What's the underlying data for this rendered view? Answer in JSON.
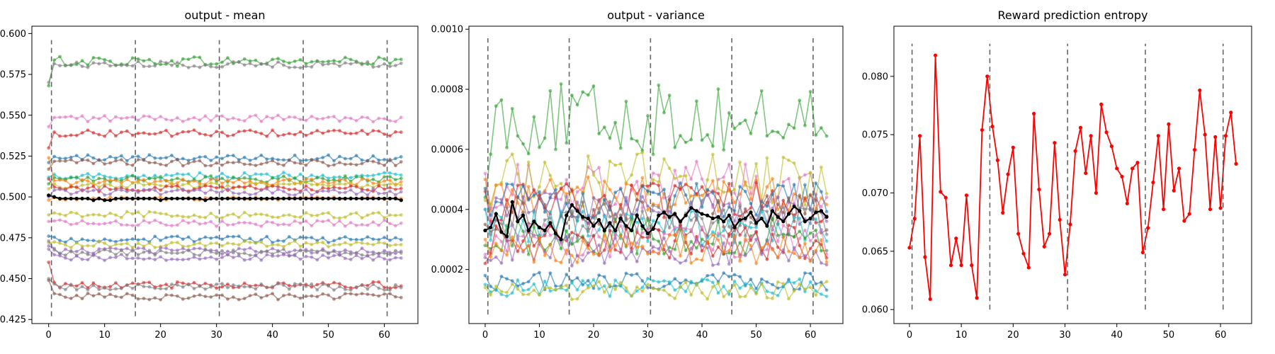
{
  "chart_data": [
    {
      "type": "line",
      "title": "output - mean",
      "xlabel": "",
      "ylabel": "",
      "xlim": [
        -3,
        66
      ],
      "ylim": [
        0.4225,
        0.6045
      ],
      "xticks": [
        "0",
        "10",
        "20",
        "30",
        "40",
        "50",
        "60"
      ],
      "yticks": [
        "0.425",
        "0.450",
        "0.475",
        "0.500",
        "0.525",
        "0.550",
        "0.575",
        "0.600"
      ],
      "vlines": [
        0.5,
        15.5,
        30.5,
        45.5,
        60.5
      ],
      "vline_range": [
        0.427,
        0.596
      ],
      "n_points": 64,
      "series": [
        {
          "color": "#2ca02c",
          "base": 0.583,
          "noise": 0.003,
          "start": 0.568
        },
        {
          "color": "#7f7f7f",
          "base": 0.581,
          "noise": 0.002,
          "start": 0.57
        },
        {
          "color": "#e377c2",
          "base": 0.548,
          "noise": 0.002,
          "start": 0.543
        },
        {
          "color": "#d62728",
          "base": 0.539,
          "noise": 0.002,
          "start": 0.53
        },
        {
          "color": "#1f77b4",
          "base": 0.524,
          "noise": 0.002,
          "start": 0.521
        },
        {
          "color": "#8c564b",
          "base": 0.521,
          "noise": 0.002,
          "start": 0.517
        },
        {
          "color": "#17becf",
          "base": 0.513,
          "noise": 0.002,
          "start": 0.512
        },
        {
          "color": "#2ca02c",
          "base": 0.511,
          "noise": 0.002,
          "start": 0.508
        },
        {
          "color": "#ff7f0e",
          "base": 0.509,
          "noise": 0.002,
          "start": 0.524
        },
        {
          "color": "#bcbd22",
          "base": 0.507,
          "noise": 0.002,
          "start": 0.505
        },
        {
          "color": "#d62728",
          "base": 0.505,
          "noise": 0.002,
          "start": 0.511
        },
        {
          "color": "#9467bd",
          "base": 0.503,
          "noise": 0.002,
          "start": 0.5
        },
        {
          "color": "#ff7f0e",
          "base": 0.499,
          "noise": 0.001,
          "start": 0.498
        },
        {
          "color": "#bcbd22",
          "base": 0.489,
          "noise": 0.002,
          "start": 0.489
        },
        {
          "color": "#e377c2",
          "base": 0.484,
          "noise": 0.002,
          "start": 0.485
        },
        {
          "color": "#1f77b4",
          "base": 0.474,
          "noise": 0.002,
          "start": 0.476
        },
        {
          "color": "#bcbd22",
          "base": 0.471,
          "noise": 0.002,
          "start": 0.472
        },
        {
          "color": "#9467bd",
          "base": 0.467,
          "noise": 0.002,
          "start": 0.47
        },
        {
          "color": "#7f7f7f",
          "base": 0.466,
          "noise": 0.002,
          "start": 0.473
        },
        {
          "color": "#9467bd",
          "base": 0.463,
          "noise": 0.002,
          "start": 0.468
        },
        {
          "color": "#d62728",
          "base": 0.446,
          "noise": 0.002,
          "start": 0.46
        },
        {
          "color": "#7f7f7f",
          "base": 0.445,
          "noise": 0.002,
          "start": 0.45
        },
        {
          "color": "#8c564b",
          "base": 0.439,
          "noise": 0.002,
          "start": 0.449
        }
      ],
      "mean_series": {
        "color": "#000000",
        "values": [
          0.501,
          0.5,
          0.499,
          0.499,
          0.499,
          0.499,
          0.499,
          0.499,
          0.498,
          0.499,
          0.498,
          0.498,
          0.499,
          0.499,
          0.499,
          0.499,
          0.499,
          0.499,
          0.499,
          0.499,
          0.498,
          0.499,
          0.499,
          0.499,
          0.499,
          0.499,
          0.499,
          0.499,
          0.498,
          0.499,
          0.499,
          0.499,
          0.499,
          0.499,
          0.499,
          0.499,
          0.499,
          0.499,
          0.499,
          0.499,
          0.499,
          0.499,
          0.499,
          0.499,
          0.499,
          0.499,
          0.499,
          0.499,
          0.499,
          0.499,
          0.499,
          0.499,
          0.499,
          0.499,
          0.499,
          0.499,
          0.499,
          0.499,
          0.499,
          0.499,
          0.499,
          0.499,
          0.499,
          0.498
        ]
      }
    },
    {
      "type": "line",
      "title": "output - variance",
      "xlabel": "",
      "ylabel": "",
      "xlim": [
        -3,
        66
      ],
      "ylim": [
        2e-05,
        0.00101
      ],
      "xticks": [
        "0",
        "10",
        "20",
        "30",
        "40",
        "50",
        "60"
      ],
      "yticks": [
        "0.0002",
        "0.0004",
        "0.0006",
        "0.0008",
        "0.0010"
      ],
      "ytick_values": [
        0.0002,
        0.0004,
        0.0006,
        0.0008,
        0.001
      ],
      "vlines": [
        0.5,
        15.5,
        30.5,
        45.5,
        60.5
      ],
      "vline_range": [
        5e-05,
        0.00097
      ],
      "n_points": 64,
      "series": [
        {
          "color": "#2ca02c",
          "base": 0.0007,
          "noise": 0.00012,
          "start": 0.00044
        },
        {
          "color": "#e377c2",
          "base": 0.00048,
          "noise": 8e-05,
          "start": 0.00052
        },
        {
          "color": "#bcbd22",
          "base": 0.0005,
          "noise": 9e-05,
          "start": 0.00043
        },
        {
          "color": "#ff7f0e",
          "base": 0.00045,
          "noise": 6e-05,
          "start": 0.0005
        },
        {
          "color": "#d62728",
          "base": 0.00042,
          "noise": 7e-05,
          "start": 0.00046
        },
        {
          "color": "#1f77b4",
          "base": 0.00043,
          "noise": 6e-05,
          "start": 0.00047
        },
        {
          "color": "#9467bd",
          "base": 0.0004,
          "noise": 6e-05,
          "start": 0.0004
        },
        {
          "color": "#8c564b",
          "base": 0.00038,
          "noise": 7e-05,
          "start": 0.00035
        },
        {
          "color": "#7f7f7f",
          "base": 0.00036,
          "noise": 6e-05,
          "start": 0.00033
        },
        {
          "color": "#17becf",
          "base": 0.00034,
          "noise": 6e-05,
          "start": 0.0004
        },
        {
          "color": "#2ca02c",
          "base": 0.00031,
          "noise": 6e-05,
          "start": 0.00028
        },
        {
          "color": "#e377c2",
          "base": 0.0003,
          "noise": 6e-05,
          "start": 0.00025
        },
        {
          "color": "#d62728",
          "base": 0.00029,
          "noise": 6e-05,
          "start": 0.00022
        },
        {
          "color": "#9467bd",
          "base": 0.00026,
          "noise": 5e-05,
          "start": 0.00024
        },
        {
          "color": "#ff7f0e",
          "base": 0.00027,
          "noise": 5e-05,
          "start": 0.0003
        },
        {
          "color": "#1f77b4",
          "base": 0.00016,
          "noise": 3e-05,
          "start": 0.00018
        },
        {
          "color": "#17becf",
          "base": 0.00014,
          "noise": 3e-05,
          "start": 0.00015
        },
        {
          "color": "#bcbd22",
          "base": 0.00013,
          "noise": 3e-05,
          "start": 0.00014
        }
      ],
      "mean_series": {
        "color": "#000000",
        "values": [
          0.00033,
          0.00034,
          0.000385,
          0.000325,
          0.00031,
          0.000425,
          0.00036,
          0.00038,
          0.00033,
          0.00036,
          0.00034,
          0.00033,
          0.000355,
          0.00032,
          0.0003,
          0.00038,
          0.000415,
          0.000395,
          0.000375,
          0.00037,
          0.000345,
          0.000365,
          0.00033,
          0.000355,
          0.00033,
          0.00037,
          0.000345,
          0.00033,
          0.00038,
          0.000345,
          0.00032,
          0.000335,
          0.00038,
          0.00039,
          0.000375,
          0.000385,
          0.00036,
          0.00038,
          0.000405,
          0.000395,
          0.000385,
          0.00038,
          0.00037,
          0.000375,
          0.00036,
          0.00038,
          0.00034,
          0.000365,
          0.00037,
          0.00039,
          0.000355,
          0.00037,
          0.000345,
          0.000395,
          0.000375,
          0.00036,
          0.000385,
          0.00041,
          0.000395,
          0.00036,
          0.00037,
          0.00039,
          0.000395,
          0.000375
        ]
      }
    },
    {
      "type": "line",
      "title": "Reward prediction entropy",
      "xlabel": "",
      "ylabel": "",
      "xlim": [
        -3,
        66
      ],
      "ylim": [
        0.0588,
        0.0843
      ],
      "xticks": [
        "0",
        "10",
        "20",
        "30",
        "40",
        "50",
        "60"
      ],
      "yticks": [
        "0.060",
        "0.065",
        "0.070",
        "0.075",
        "0.080"
      ],
      "ytick_values": [
        0.06,
        0.065,
        0.07,
        0.075,
        0.08
      ],
      "vlines": [
        0.5,
        15.5,
        30.5,
        45.5,
        60.5
      ],
      "vline_range": [
        0.06,
        0.0828
      ],
      "series": [
        {
          "color": "#ff0000",
          "values": [
            0.0653,
            0.0678,
            0.0749,
            0.0645,
            0.0609,
            0.0818,
            0.0701,
            0.0696,
            0.0638,
            0.0661,
            0.0638,
            0.0698,
            0.0638,
            0.061,
            0.0754,
            0.08,
            0.0757,
            0.0728,
            0.0683,
            0.0716,
            0.0739,
            0.0665,
            0.0648,
            0.0636,
            0.0768,
            0.0703,
            0.0654,
            0.0665,
            0.0743,
            0.0677,
            0.063,
            0.0673,
            0.0736,
            0.0756,
            0.0717,
            0.0749,
            0.07,
            0.0776,
            0.0752,
            0.074,
            0.0721,
            0.0714,
            0.0691,
            0.0721,
            0.0726,
            0.0649,
            0.067,
            0.0709,
            0.0749,
            0.0686,
            0.0759,
            0.0702,
            0.0721,
            0.0676,
            0.0682,
            0.0737,
            0.0788,
            0.075,
            0.0686,
            0.0748,
            0.0687,
            0.0749,
            0.0769,
            0.0725
          ]
        }
      ]
    }
  ]
}
